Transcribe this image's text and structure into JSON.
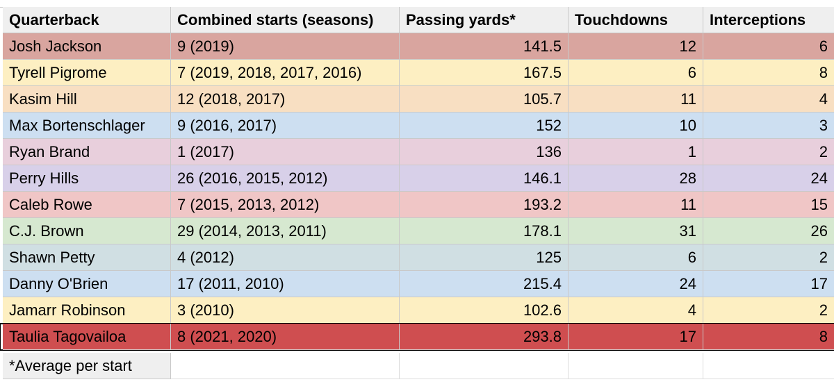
{
  "table": {
    "columns": [
      "Quarterback",
      "Combined starts (seasons)",
      "Passing yards*",
      "Touchdowns",
      "Interceptions"
    ],
    "rows": [
      {
        "quarterback": "Josh Jackson",
        "starts": "9 (2019)",
        "passing_yards": "141.5",
        "touchdowns": "12",
        "interceptions": "6",
        "color": "#d9a59f"
      },
      {
        "quarterback": "Tyrell Pigrome",
        "starts": "7 (2019, 2018, 2017, 2016)",
        "passing_yards": "167.5",
        "touchdowns": "6",
        "interceptions": "8",
        "color": "#fdefc2"
      },
      {
        "quarterback": "Kasim Hill",
        "starts": "12 (2018, 2017)",
        "passing_yards": "105.7",
        "touchdowns": "11",
        "interceptions": "4",
        "color": "#f8dfc2"
      },
      {
        "quarterback": "Max Bortenschlager",
        "starts": "9 (2016, 2017)",
        "passing_yards": "152",
        "touchdowns": "10",
        "interceptions": "3",
        "color": "#cddff1"
      },
      {
        "quarterback": "Ryan Brand",
        "starts": "1 (2017)",
        "passing_yards": "136",
        "touchdowns": "1",
        "interceptions": "2",
        "color": "#e8cfdc"
      },
      {
        "quarterback": "Perry Hills",
        "starts": "26 (2016, 2015, 2012)",
        "passing_yards": "146.1",
        "touchdowns": "28",
        "interceptions": "24",
        "color": "#d8d0e9"
      },
      {
        "quarterback": "Caleb Rowe",
        "starts": "7 (2015, 2013, 2012)",
        "passing_yards": "193.2",
        "touchdowns": "11",
        "interceptions": "15",
        "color": "#f0c6c6"
      },
      {
        "quarterback": "C.J. Brown",
        "starts": "29 (2014, 2013, 2011)",
        "passing_yards": "178.1",
        "touchdowns": "31",
        "interceptions": "26",
        "color": "#d6e8d0"
      },
      {
        "quarterback": "Shawn Petty",
        "starts": "4 (2012)",
        "passing_yards": "125",
        "touchdowns": "6",
        "interceptions": "2",
        "color": "#d0dfe3"
      },
      {
        "quarterback": "Danny O'Brien",
        "starts": "17 (2011, 2010)",
        "passing_yards": "215.4",
        "touchdowns": "24",
        "interceptions": "17",
        "color": "#cddff1"
      },
      {
        "quarterback": "Jamarr Robinson",
        "starts": "3 (2010)",
        "passing_yards": "102.6",
        "touchdowns": "4",
        "interceptions": "2",
        "color": "#fdefc2"
      },
      {
        "quarterback": "Taulia Tagovailoa",
        "starts": "8 (2021, 2020)",
        "passing_yards": "293.8",
        "touchdowns": "17",
        "interceptions": "8",
        "color": "#cf4e50"
      }
    ]
  },
  "footnote": "*Average per start",
  "colors": {
    "header_bg": "#efefef",
    "gridline": "#c9c9c9"
  }
}
